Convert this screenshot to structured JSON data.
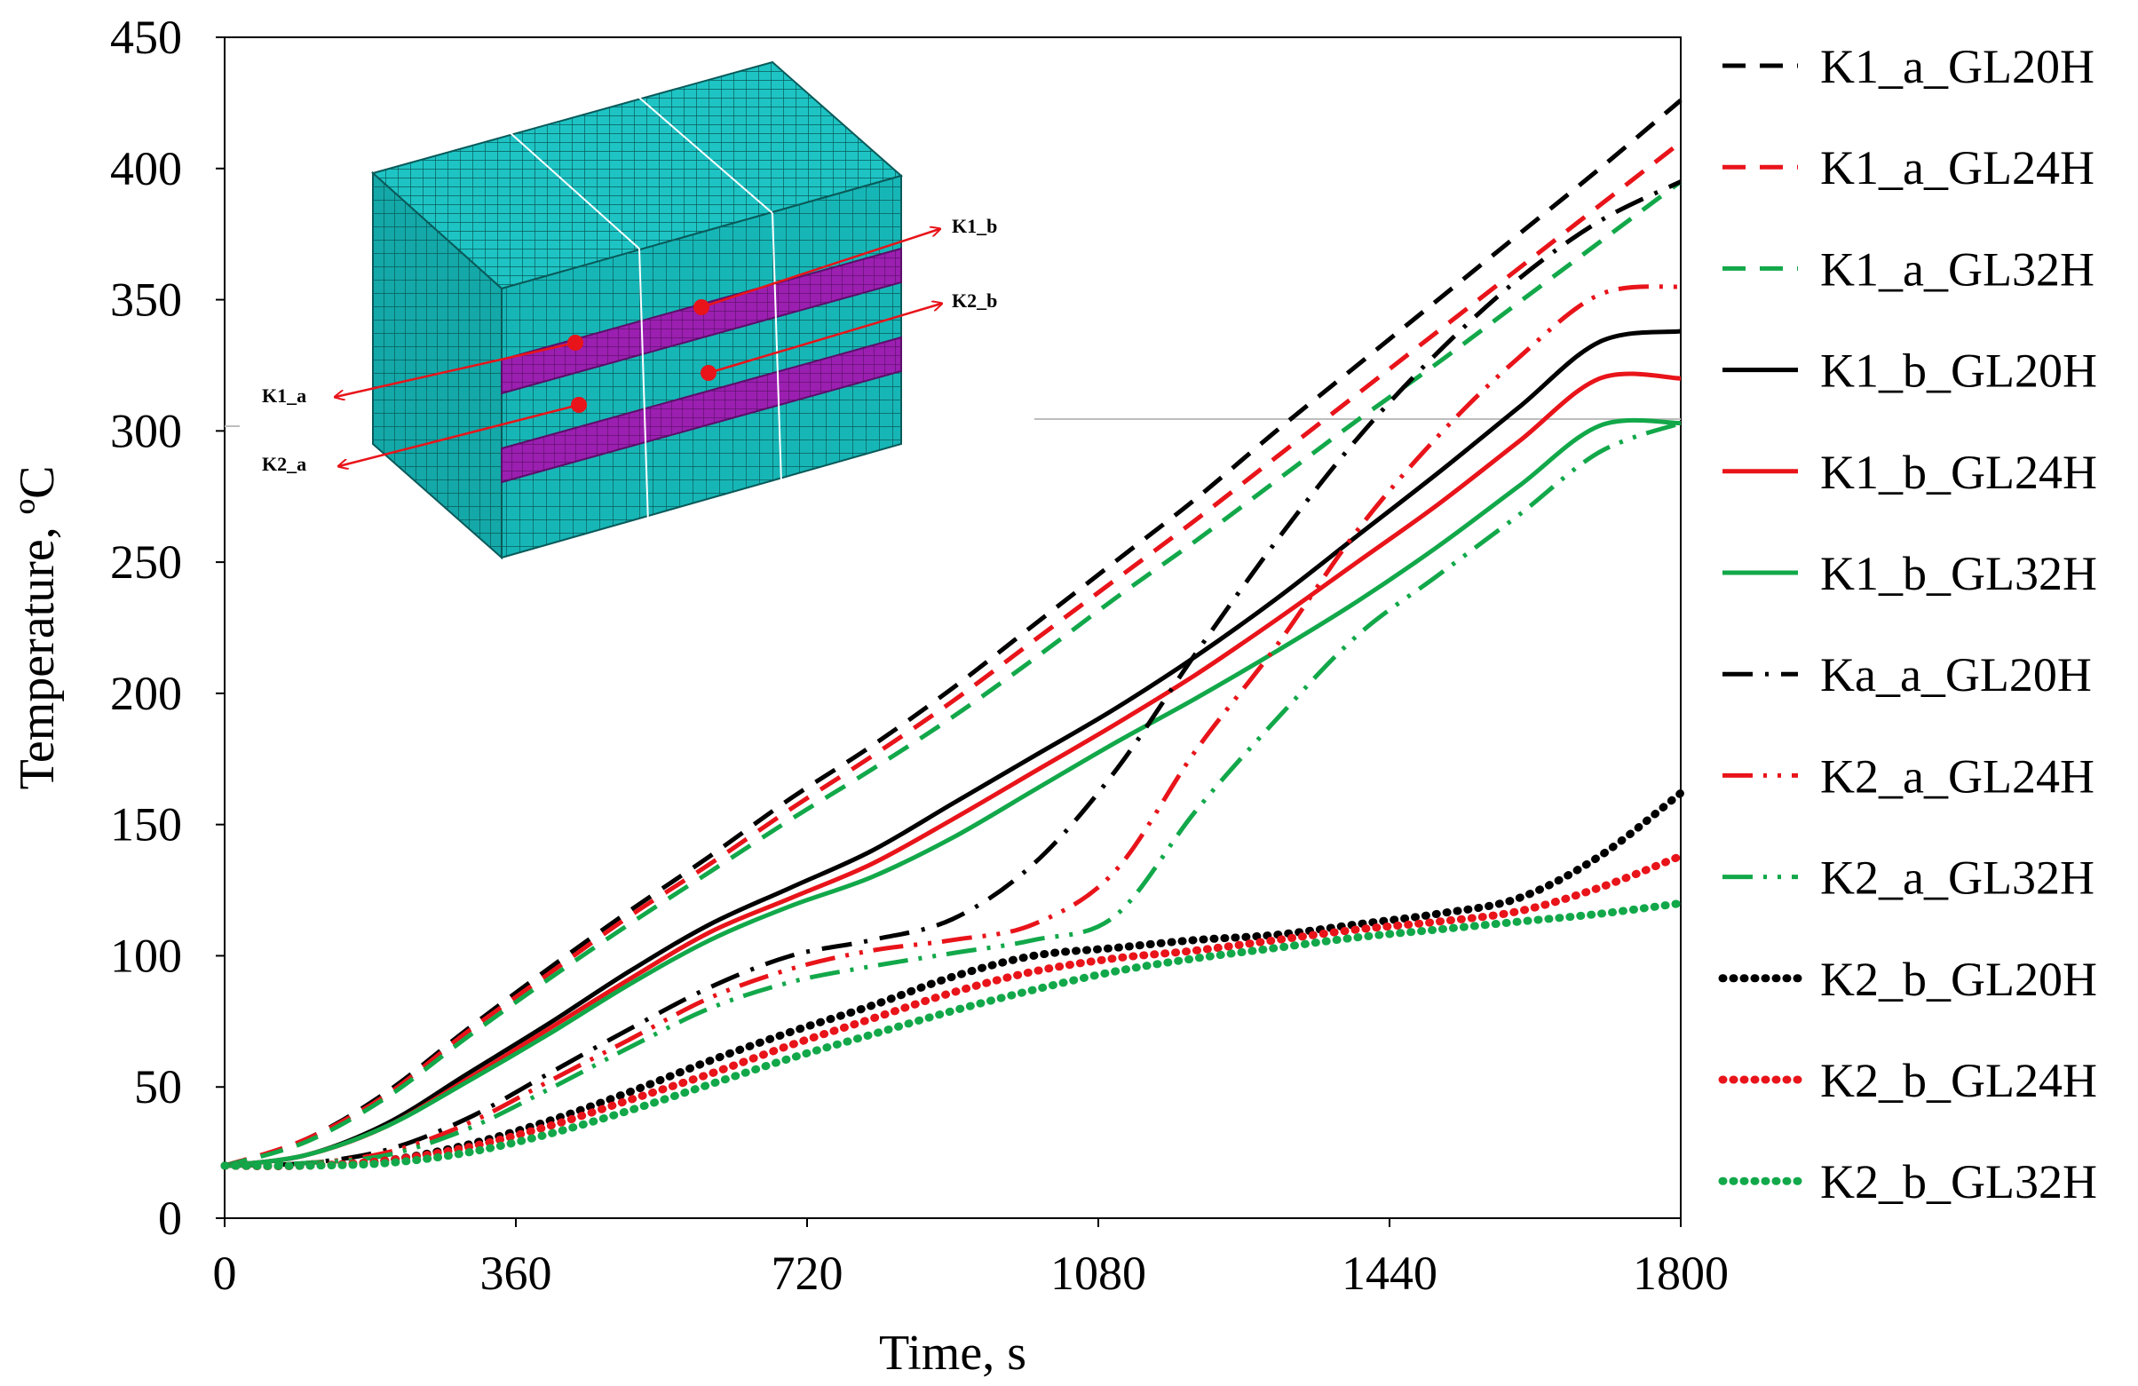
{
  "chart_data": {
    "type": "line",
    "title": "",
    "xlabel": "Time, s",
    "ylabel": "Temperature, ºC",
    "xlim": [
      0,
      1800
    ],
    "ylim": [
      0,
      450
    ],
    "x_ticks": [
      "0",
      "360",
      "720",
      "1080",
      "1440",
      "1800"
    ],
    "y_ticks": [
      "0",
      "50",
      "100",
      "150",
      "200",
      "250",
      "300",
      "350",
      "400",
      "450"
    ],
    "grid": false,
    "legend_position": "right",
    "series": [
      {
        "name": "K1_a_GL20H",
        "color": "#000000",
        "style": "dash",
        "x": [
          0,
          100,
          200,
          300,
          400,
          500,
          600,
          700,
          800,
          900,
          1000,
          1100,
          1200,
          1300,
          1400,
          1500,
          1600,
          1700,
          1800
        ],
        "y": [
          20,
          30,
          48,
          72,
          95,
          117,
          138,
          160,
          180,
          202,
          226,
          250,
          274,
          300,
          325,
          350,
          375,
          400,
          426
        ]
      },
      {
        "name": "K1_a_GL24H",
        "color": "#e8141a",
        "style": "dash",
        "x": [
          0,
          100,
          200,
          300,
          400,
          500,
          600,
          700,
          800,
          900,
          1000,
          1100,
          1200,
          1300,
          1400,
          1500,
          1600,
          1700,
          1800
        ],
        "y": [
          20,
          30,
          47,
          71,
          93,
          115,
          135,
          156,
          176,
          197,
          220,
          243,
          266,
          290,
          314,
          338,
          362,
          386,
          410
        ]
      },
      {
        "name": "K1_a_GL32H",
        "color": "#12a84a",
        "style": "dash",
        "x": [
          0,
          100,
          200,
          300,
          400,
          500,
          600,
          700,
          800,
          900,
          1000,
          1100,
          1200,
          1300,
          1400,
          1500,
          1600,
          1700,
          1800
        ],
        "y": [
          20,
          29,
          46,
          69,
          91,
          112,
          132,
          152,
          171,
          191,
          213,
          236,
          258,
          281,
          304,
          326,
          349,
          372,
          395
        ]
      },
      {
        "name": "K1_b_GL20H",
        "color": "#000000",
        "style": "solid",
        "x": [
          0,
          100,
          200,
          300,
          400,
          500,
          600,
          700,
          800,
          900,
          1000,
          1100,
          1200,
          1300,
          1400,
          1500,
          1600,
          1700,
          1800
        ],
        "y": [
          20,
          24,
          36,
          55,
          74,
          94,
          112,
          126,
          140,
          158,
          176,
          194,
          214,
          236,
          260,
          284,
          309,
          334,
          338
        ]
      },
      {
        "name": "K1_b_GL24H",
        "color": "#e8141a",
        "style": "solid",
        "x": [
          0,
          100,
          200,
          300,
          400,
          500,
          600,
          700,
          800,
          900,
          1000,
          1100,
          1200,
          1300,
          1400,
          1500,
          1600,
          1700,
          1800
        ],
        "y": [
          20,
          24,
          35,
          53,
          72,
          91,
          109,
          122,
          135,
          152,
          170,
          188,
          207,
          228,
          250,
          272,
          296,
          320,
          320
        ]
      },
      {
        "name": "K1_b_GL32H",
        "color": "#12a84a",
        "style": "solid",
        "x": [
          0,
          100,
          200,
          300,
          400,
          500,
          600,
          700,
          800,
          900,
          1000,
          1100,
          1200,
          1300,
          1400,
          1500,
          1600,
          1700,
          1800
        ],
        "y": [
          20,
          24,
          35,
          52,
          70,
          89,
          106,
          119,
          130,
          145,
          163,
          181,
          198,
          216,
          235,
          256,
          279,
          302,
          303
        ]
      },
      {
        "name": "Ka_a_GL20H",
        "color": "#000000",
        "style": "dashdot",
        "x": [
          0,
          100,
          200,
          300,
          400,
          500,
          600,
          700,
          800,
          900,
          1000,
          1100,
          1200,
          1300,
          1400,
          1500,
          1600,
          1700,
          1800
        ],
        "y": [
          20,
          21,
          26,
          38,
          55,
          72,
          88,
          100,
          106,
          114,
          135,
          170,
          215,
          258,
          297,
          330,
          358,
          380,
          395
        ]
      },
      {
        "name": "K2_a_GL24H",
        "color": "#e8141a",
        "style": "dashdotdot",
        "x": [
          0,
          100,
          200,
          300,
          400,
          500,
          600,
          700,
          800,
          900,
          1000,
          1100,
          1200,
          1300,
          1400,
          1500,
          1600,
          1700,
          1800
        ],
        "y": [
          20,
          21,
          25,
          36,
          52,
          68,
          84,
          95,
          102,
          106,
          112,
          132,
          178,
          218,
          262,
          298,
          328,
          352,
          355
        ]
      },
      {
        "name": "K2_a_GL32H",
        "color": "#12a84a",
        "style": "dashdotdot",
        "x": [
          0,
          100,
          200,
          300,
          400,
          500,
          600,
          700,
          800,
          900,
          1000,
          1100,
          1200,
          1300,
          1400,
          1500,
          1600,
          1700,
          1800
        ],
        "y": [
          20,
          21,
          24,
          34,
          49,
          65,
          80,
          90,
          96,
          101,
          106,
          115,
          155,
          190,
          222,
          245,
          268,
          292,
          303
        ]
      },
      {
        "name": "K2_b_GL20H",
        "color": "#000000",
        "style": "dot",
        "x": [
          0,
          100,
          200,
          300,
          400,
          500,
          600,
          700,
          800,
          900,
          1000,
          1100,
          1200,
          1300,
          1400,
          1500,
          1600,
          1700,
          1800
        ],
        "y": [
          20,
          20,
          22,
          28,
          37,
          48,
          60,
          71,
          81,
          92,
          100,
          103,
          106,
          108,
          112,
          116,
          122,
          138,
          162
        ]
      },
      {
        "name": "K2_b_GL24H",
        "color": "#e8141a",
        "style": "dot",
        "x": [
          0,
          100,
          200,
          300,
          400,
          500,
          600,
          700,
          800,
          900,
          1000,
          1100,
          1200,
          1300,
          1400,
          1500,
          1600,
          1700,
          1800
        ],
        "y": [
          20,
          20,
          22,
          27,
          35,
          45,
          55,
          66,
          76,
          86,
          94,
          99,
          102,
          106,
          110,
          113,
          117,
          126,
          138
        ]
      },
      {
        "name": "K2_b_GL32H",
        "color": "#12a84a",
        "style": "dot",
        "x": [
          0,
          100,
          200,
          300,
          400,
          500,
          600,
          700,
          800,
          900,
          1000,
          1100,
          1200,
          1300,
          1400,
          1500,
          1600,
          1700,
          1800
        ],
        "y": [
          20,
          20,
          21,
          25,
          32,
          41,
          51,
          61,
          70,
          79,
          87,
          94,
          99,
          103,
          107,
          110,
          113,
          116,
          120
        ]
      }
    ]
  },
  "inset": {
    "labels": [
      "K1_b",
      "K2_b",
      "K1_a",
      "K2_a"
    ],
    "colors": {
      "mesh": "#17b6b6",
      "bar": "#9b1fb0",
      "marker": "#e8141a"
    }
  }
}
